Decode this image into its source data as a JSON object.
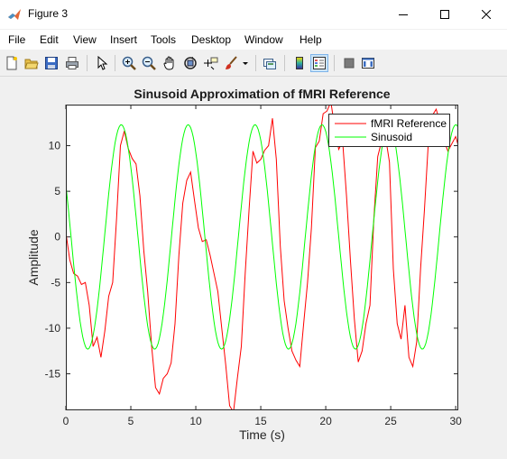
{
  "window": {
    "title": "Figure 3",
    "controls": [
      "minimize",
      "maximize",
      "close"
    ]
  },
  "menu": {
    "items": [
      "File",
      "Edit",
      "View",
      "Insert",
      "Tools",
      "Desktop",
      "Window",
      "Help"
    ]
  },
  "toolbar": {
    "icons": [
      "new-figure-icon",
      "open-file-icon",
      "save-icon",
      "print-icon",
      "edit-plot-arrow-icon",
      "zoom-in-icon",
      "zoom-out-icon",
      "pan-hand-icon",
      "rotate-3d-icon",
      "data-cursor-icon",
      "brush-icon",
      "link-plot-icon",
      "colorbar-icon",
      "legend-icon",
      "hide-plot-tools-icon",
      "show-plot-tools-icon"
    ]
  },
  "chart_data": {
    "type": "line",
    "title": "Sinusoid Approximation of fMRI Reference",
    "xlabel": "Time (s)",
    "ylabel": "Amplitude",
    "xlim": [
      0,
      30.2
    ],
    "ylim": [
      -19,
      14.5
    ],
    "xticks": [
      0,
      5,
      10,
      15,
      20,
      25,
      30
    ],
    "yticks": [
      10,
      5,
      0,
      -5,
      -10,
      -15
    ],
    "grid": false,
    "legend_position": "top-right",
    "series": [
      {
        "name": "fMRI Reference",
        "color": "#ff0000",
        "x": [
          0,
          0.3,
          0.6,
          0.9,
          1.2,
          1.5,
          1.8,
          2.1,
          2.4,
          2.7,
          3.0,
          3.3,
          3.6,
          3.9,
          4.2,
          4.5,
          4.8,
          5.1,
          5.4,
          5.7,
          6.0,
          6.3,
          6.6,
          6.9,
          7.2,
          7.5,
          7.8,
          8.1,
          8.4,
          8.7,
          9.0,
          9.3,
          9.6,
          9.9,
          10.2,
          10.5,
          10.8,
          11.1,
          11.4,
          11.7,
          12.0,
          12.3,
          12.6,
          12.9,
          13.2,
          13.5,
          13.8,
          14.1,
          14.4,
          14.7,
          15.0,
          15.3,
          15.6,
          15.9,
          16.2,
          16.5,
          16.8,
          17.1,
          17.4,
          17.7,
          18.0,
          18.3,
          18.6,
          18.9,
          19.2,
          19.5,
          19.8,
          20.1,
          20.4,
          20.7,
          21.0,
          21.3,
          21.6,
          21.9,
          22.2,
          22.5,
          22.8,
          23.1,
          23.4,
          23.7,
          24.0,
          24.3,
          24.6,
          24.9,
          25.2,
          25.5,
          25.8,
          26.1,
          26.4,
          26.7,
          27.0,
          27.3,
          27.6,
          27.9,
          28.2,
          28.5,
          28.8,
          29.1,
          29.4,
          29.7,
          30.0,
          30.2
        ],
        "values": [
          0.5,
          -2.5,
          -4,
          -4.3,
          -5.2,
          -5,
          -7.5,
          -12,
          -11,
          -13.2,
          -10.3,
          -6.5,
          -5,
          2,
          10,
          11.6,
          9.7,
          8.6,
          8,
          4.5,
          -1.5,
          -6,
          -12,
          -16.5,
          -17.2,
          -15.5,
          -15,
          -13.8,
          -9.5,
          -2,
          3.7,
          6.2,
          7.1,
          4,
          1,
          -0.5,
          -0.3,
          -2,
          -4,
          -6,
          -10,
          -14,
          -18.5,
          -19.2,
          -15.5,
          -12,
          -4,
          3,
          9.4,
          8.1,
          8.5,
          9.5,
          10,
          13,
          8.5,
          -1,
          -7,
          -10,
          -12.5,
          -13.5,
          -14.2,
          -9.5,
          -5,
          1,
          9.8,
          10.5,
          13.5,
          13.8,
          14.8,
          11.8,
          9.6,
          10.5,
          4.5,
          -2.5,
          -9,
          -13.7,
          -12.5,
          -9.5,
          -7.5,
          2,
          8.8,
          10.5,
          11,
          8.2,
          -3.5,
          -9.5,
          -11.2,
          -7.5,
          -13.2,
          -14.2,
          -11.5,
          -3.5,
          3,
          10.5,
          13.3,
          14,
          12.5,
          10.5,
          9.4,
          10.2,
          11,
          10
        ]
      },
      {
        "name": "Sinusoid",
        "color": "#00ff00",
        "amplitude": 12.3,
        "period": 5.15,
        "phase_shift_s": 0.4
      }
    ]
  }
}
